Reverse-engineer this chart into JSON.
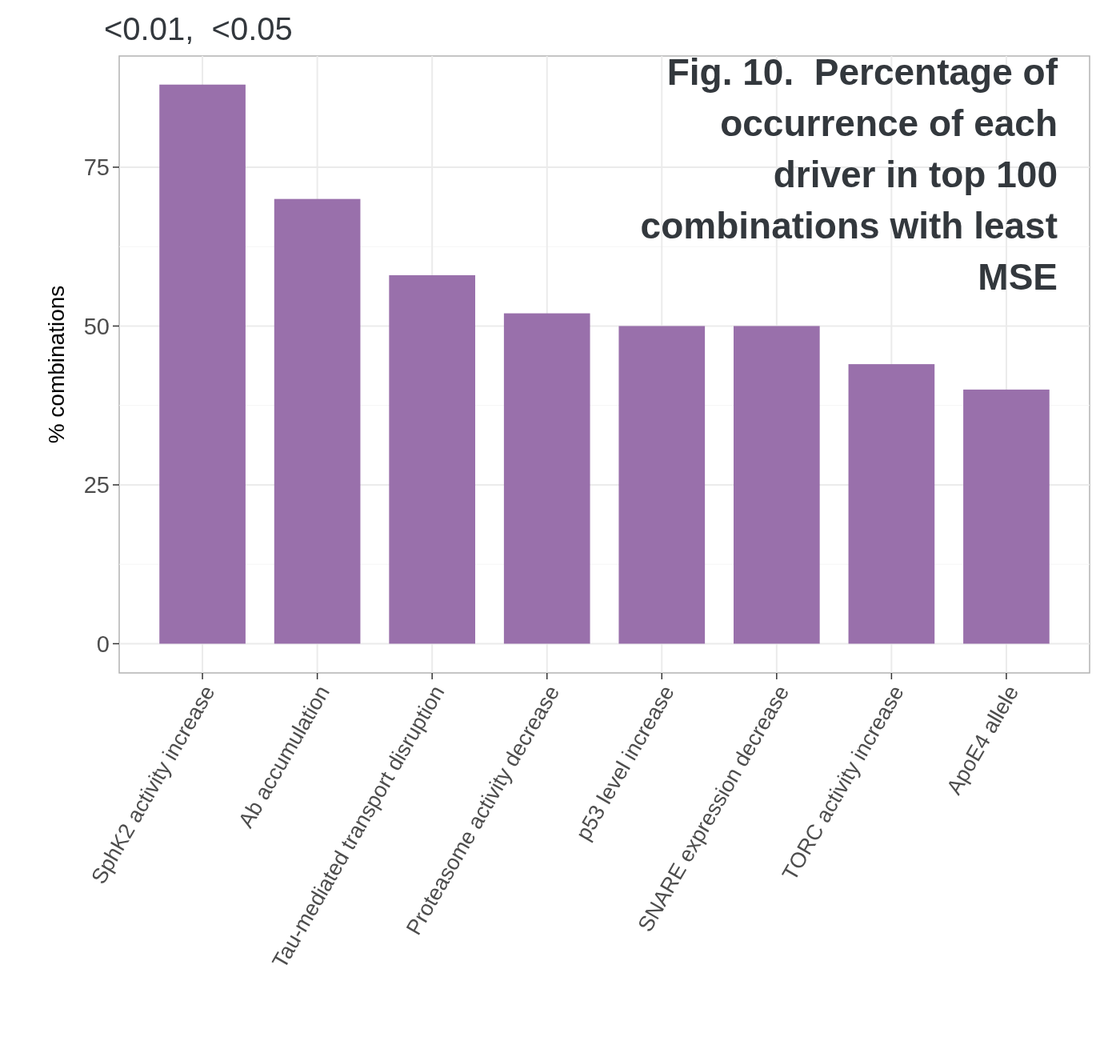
{
  "chart_data": {
    "type": "bar",
    "title": "Fig. 10.  Percentage of occurrence of each driver in top 100 combinations with least MSE",
    "ylabel": "% combinations",
    "annotations": [
      "<0.01,  <0.05"
    ],
    "categories": [
      "SphK2 activity increase",
      "Ab accumulation",
      "Tau-mediated transport disruption",
      "Proteasome activity decrease",
      "p53 level increase",
      "SNARE expression decrease",
      "TORC activity increase",
      "ApoE4 allele"
    ],
    "values": [
      88,
      70,
      58,
      52,
      50,
      50,
      44,
      40
    ],
    "color": "#9970ab",
    "ylim": [
      -4.6,
      92.5
    ],
    "yticks": [
      0,
      25,
      50,
      75
    ],
    "grid": true
  }
}
